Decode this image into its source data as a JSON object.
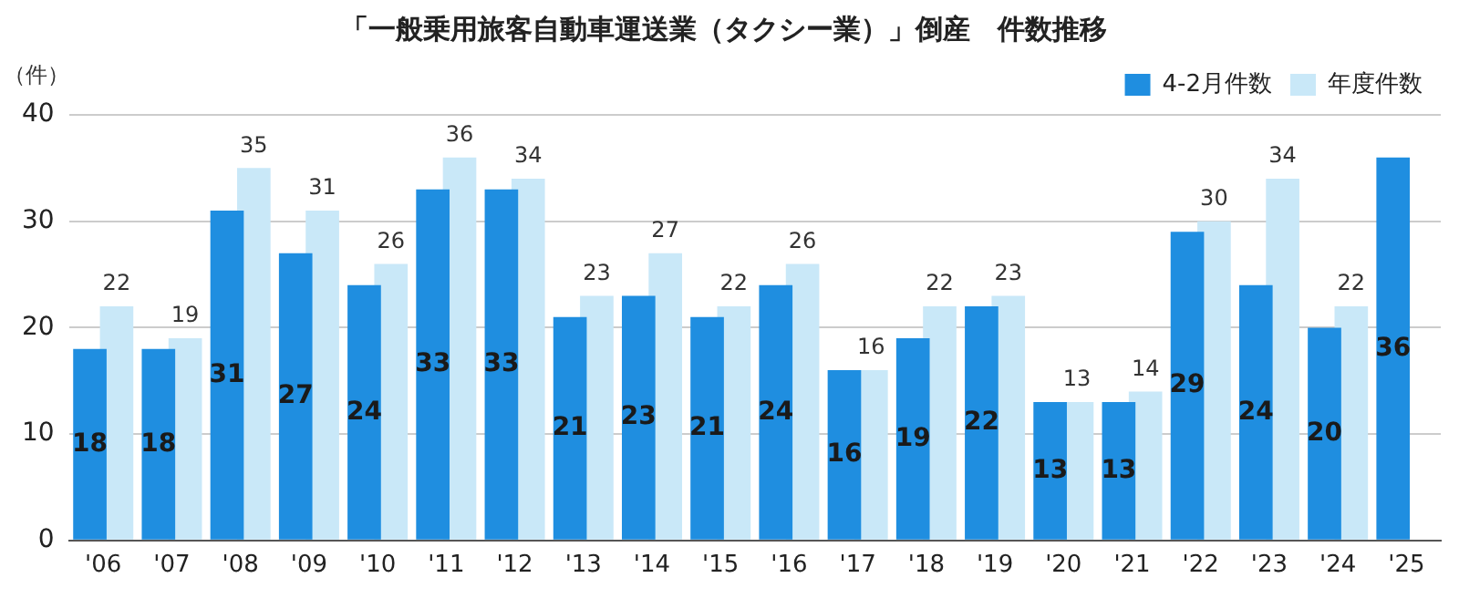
{
  "chart_data": {
    "type": "bar",
    "title": "「一般乗用旅客自動車運送業（タクシー業）」倒産　件数推移",
    "ylabel": "（件）",
    "categories": [
      "'06",
      "'07",
      "'08",
      "'09",
      "'10",
      "'11",
      "'12",
      "'13",
      "'14",
      "'15",
      "'16",
      "'17",
      "'18",
      "'19",
      "'20",
      "'21",
      "'22",
      "'23",
      "'24",
      "'25"
    ],
    "series": [
      {
        "name": "年度件数",
        "color": "#c9e8f8",
        "values": [
          22,
          19,
          35,
          31,
          26,
          36,
          34,
          23,
          27,
          22,
          26,
          16,
          22,
          23,
          13,
          14,
          30,
          34,
          22,
          null
        ]
      },
      {
        "name": "4-2月件数",
        "color": "#1f8ee0",
        "values": [
          18,
          18,
          31,
          27,
          24,
          33,
          33,
          21,
          23,
          21,
          24,
          16,
          19,
          22,
          13,
          13,
          29,
          24,
          20,
          36
        ]
      }
    ],
    "ylim": [
      0,
      40
    ],
    "yticks": [
      0,
      10,
      20,
      30,
      40
    ],
    "grid": "y",
    "legend": "top right",
    "data_labels": true
  }
}
